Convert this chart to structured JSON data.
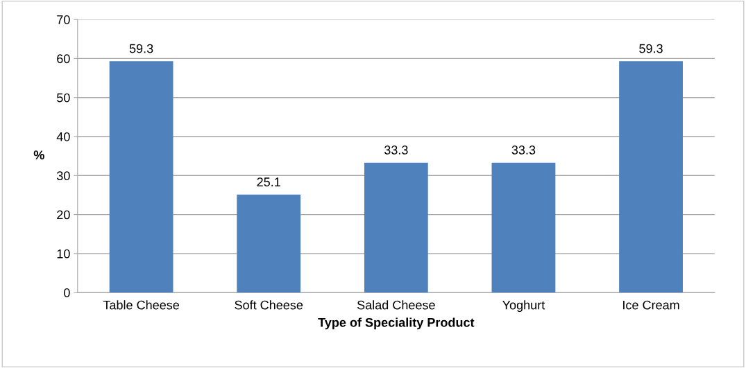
{
  "chart_data": {
    "type": "bar",
    "xlabel": "Type of Speciality Product",
    "ylabel": "%",
    "categories": [
      "Table Cheese",
      "Soft Cheese",
      "Salad Cheese",
      "Yoghurt",
      "Ice Cream"
    ],
    "values": [
      59.3,
      25.1,
      33.3,
      33.3,
      59.3
    ],
    "color": "#4f81bd",
    "ylim": [
      0,
      70
    ],
    "yticks": [
      0,
      10,
      20,
      30,
      40,
      50,
      60,
      70
    ],
    "grid": "y",
    "data_labels": true
  }
}
